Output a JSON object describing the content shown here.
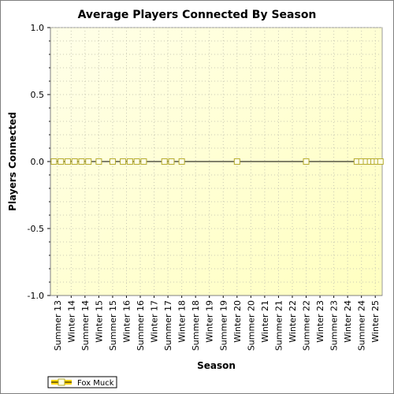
{
  "chart_data": {
    "type": "line",
    "title": "Average Players Connected By Season",
    "xlabel": "Season",
    "ylabel": "Players Connected",
    "categories": [
      "Summer 13",
      "Winter 14",
      "Summer 14",
      "Winter 15",
      "Summer 15",
      "Winter 16",
      "Summer 16",
      "Winter 17",
      "Summer 17",
      "Winter 18",
      "Summer 18",
      "Winter 19",
      "Summer 19",
      "Winter 20",
      "Summer 20",
      "Winter 21",
      "Summer 21",
      "Winter 22",
      "Summer 22",
      "Winter 23",
      "Summer 23",
      "Winter 24",
      "Summer 24",
      "Winter 25"
    ],
    "ylim": [
      -1.0,
      1.0
    ],
    "yticks": [
      "1.0",
      "0.5",
      "0.0",
      "-0.5",
      "-1.0"
    ],
    "grid": true,
    "legend_position": "bottom-left",
    "series": [
      {
        "name": "Fox Muck",
        "points": [
          {
            "x": "Summer 13",
            "y": 0.0
          },
          {
            "x": "Summer 13",
            "y": 0.0
          },
          {
            "x": "Winter 14",
            "y": 0.0
          },
          {
            "x": "Winter 14",
            "y": 0.0
          },
          {
            "x": "Summer 14",
            "y": 0.0
          },
          {
            "x": "Summer 14",
            "y": 0.0
          },
          {
            "x": "Winter 15",
            "y": 0.0
          },
          {
            "x": "Summer 15",
            "y": 0.0
          },
          {
            "x": "Winter 16",
            "y": 0.0
          },
          {
            "x": "Winter 16",
            "y": 0.0
          },
          {
            "x": "Summer 16",
            "y": 0.0
          },
          {
            "x": "Summer 16",
            "y": 0.0
          },
          {
            "x": "Summer 17",
            "y": 0.0
          },
          {
            "x": "Summer 17",
            "y": 0.0
          },
          {
            "x": "Winter 18",
            "y": 0.0
          },
          {
            "x": "Winter 20",
            "y": 0.0
          },
          {
            "x": "Summer 22",
            "y": 0.0
          },
          {
            "x": "Summer 24",
            "y": 0.0
          },
          {
            "x": "Summer 24",
            "y": 0.0
          },
          {
            "x": "Summer 24",
            "y": 0.0
          },
          {
            "x": "Winter 25",
            "y": 0.0
          },
          {
            "x": "Winter 25",
            "y": 0.0
          },
          {
            "x": "Winter 25",
            "y": 0.0
          },
          {
            "x": "Winter 25",
            "y": 0.0
          }
        ]
      }
    ]
  },
  "colors": {
    "plot_bg_top": "#fffff0",
    "plot_bg_bottom": "#ffffc4",
    "series_line": "#000000",
    "marker_fill": "#ffffe6",
    "marker_stroke": "#b5ab2e",
    "legend_swatch": "#ffd700",
    "frame": "#7f7f7f"
  }
}
